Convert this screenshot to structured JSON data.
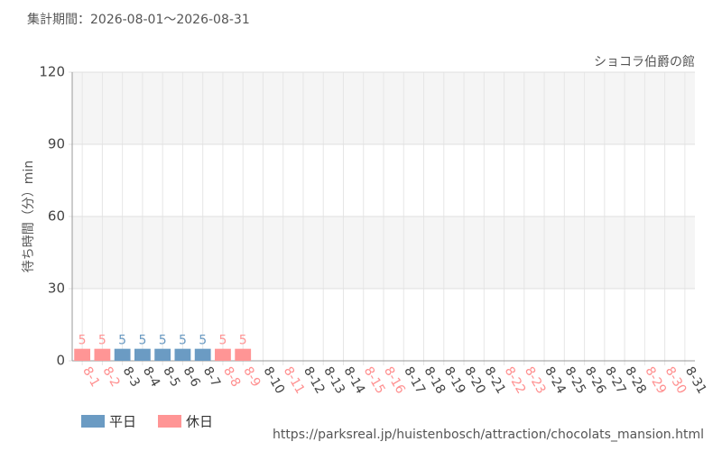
{
  "chart_data": {
    "type": "bar",
    "title": "集計期間：2026-08-01〜2026-08-31",
    "subtitle": "ショコラ伯爵の館",
    "y_label": "待ち時間（分）min",
    "source": "https://parksreal.jp/huistenbosch/attraction/chocolats_mansion.html",
    "categories": [
      "8-1",
      "8-2",
      "8-3",
      "8-4",
      "8-5",
      "8-6",
      "8-7",
      "8-8",
      "8-9",
      "8-10",
      "8-11",
      "8-12",
      "8-13",
      "8-14",
      "8-15",
      "8-16",
      "8-17",
      "8-18",
      "8-19",
      "8-20",
      "8-21",
      "8-22",
      "8-23",
      "8-24",
      "8-25",
      "8-26",
      "8-27",
      "8-28",
      "8-29",
      "8-30",
      "8-31"
    ],
    "category_label_colors": [
      "#ff8f8f",
      "#ff8f8f",
      "#444",
      "#444",
      "#444",
      "#444",
      "#444",
      "#ff8f8f",
      "#ff8f8f",
      "#444",
      "#ff8f8f",
      "#444",
      "#444",
      "#444",
      "#ff8f8f",
      "#ff8f8f",
      "#444",
      "#444",
      "#444",
      "#444",
      "#444",
      "#ff8f8f",
      "#ff8f8f",
      "#444",
      "#444",
      "#444",
      "#444",
      "#444",
      "#ff8f8f",
      "#ff8f8f",
      "#444"
    ],
    "series": [
      {
        "name": "平日",
        "color": "#6b9bc3",
        "values": [
          null,
          null,
          5,
          5,
          5,
          5,
          5,
          null,
          null,
          null,
          null,
          null,
          null,
          null,
          null,
          null,
          null,
          null,
          null,
          null,
          null,
          null,
          null,
          null,
          null,
          null,
          null,
          null,
          null,
          null,
          null
        ]
      },
      {
        "name": "休日",
        "color": "#ff9595",
        "values": [
          5,
          5,
          null,
          null,
          null,
          null,
          null,
          5,
          5,
          null,
          null,
          null,
          null,
          null,
          null,
          null,
          null,
          null,
          null,
          null,
          null,
          null,
          null,
          null,
          null,
          null,
          null,
          null,
          null,
          null,
          null
        ]
      }
    ],
    "ylim": [
      0,
      120
    ],
    "yticks": [
      0,
      30,
      60,
      90,
      120
    ],
    "grid": true
  }
}
